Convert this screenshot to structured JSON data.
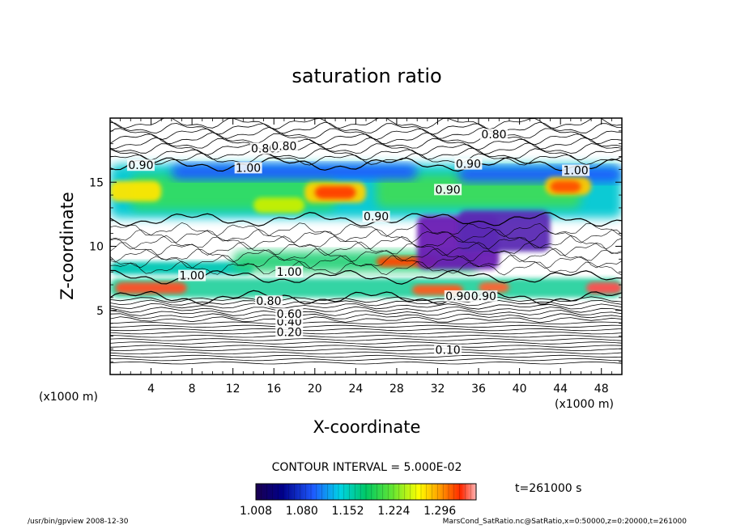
{
  "chart_data": {
    "type": "heatmap",
    "title": "saturation ratio",
    "xlabel": "X-coordinate",
    "ylabel": "Z-coordinate",
    "x_unit": "(x1000 m)",
    "y_unit": "(x1000 m)",
    "xlim": [
      0,
      50
    ],
    "ylim": [
      0,
      20
    ],
    "x_ticks": [
      4,
      8,
      12,
      16,
      20,
      24,
      28,
      32,
      36,
      40,
      44,
      48
    ],
    "y_ticks": [
      5,
      10,
      15
    ],
    "contour_interval_text": "CONTOUR INTERVAL = 5.000E-02",
    "time_text": "t=261000 s",
    "colorbar": {
      "min": 1.008,
      "max": 1.296,
      "tick_labels": [
        "1.008",
        "1.080",
        "1.152",
        "1.224",
        "1.296"
      ]
    },
    "contour_labels": [
      {
        "text": "0.10",
        "x": 33,
        "z": 1.8
      },
      {
        "text": "0.20",
        "x": 17.5,
        "z": 3.2
      },
      {
        "text": "0.40",
        "x": 17.5,
        "z": 4.0
      },
      {
        "text": "0.60",
        "x": 17.5,
        "z": 4.6
      },
      {
        "text": "0.80",
        "x": 15.5,
        "z": 5.6
      },
      {
        "text": "0.90",
        "x": 3,
        "z": 16.2
      },
      {
        "text": "1.00",
        "x": 13.5,
        "z": 16.0
      },
      {
        "text": "0.80",
        "x": 15,
        "z": 17.5
      },
      {
        "text": "0.80",
        "x": 17,
        "z": 17.7
      },
      {
        "text": "0.80",
        "x": 37.5,
        "z": 18.6
      },
      {
        "text": "0.90",
        "x": 35,
        "z": 16.3
      },
      {
        "text": "1.00",
        "x": 45.5,
        "z": 15.8
      },
      {
        "text": "0.90",
        "x": 33,
        "z": 14.3
      },
      {
        "text": "0.90",
        "x": 26,
        "z": 12.2
      },
      {
        "text": "1.00",
        "x": 8,
        "z": 7.6
      },
      {
        "text": "1.00",
        "x": 17.5,
        "z": 7.9
      },
      {
        "text": "0.90",
        "x": 34,
        "z": 6.0
      },
      {
        "text": "0.90",
        "x": 36.5,
        "z": 6.0
      }
    ]
  },
  "footer": {
    "left": "/usr/bin/gpview  2008-12-30",
    "right": "MarsCond_SatRatio.nc@SatRatio,x=0:50000,z=0:20000,t=261000"
  }
}
